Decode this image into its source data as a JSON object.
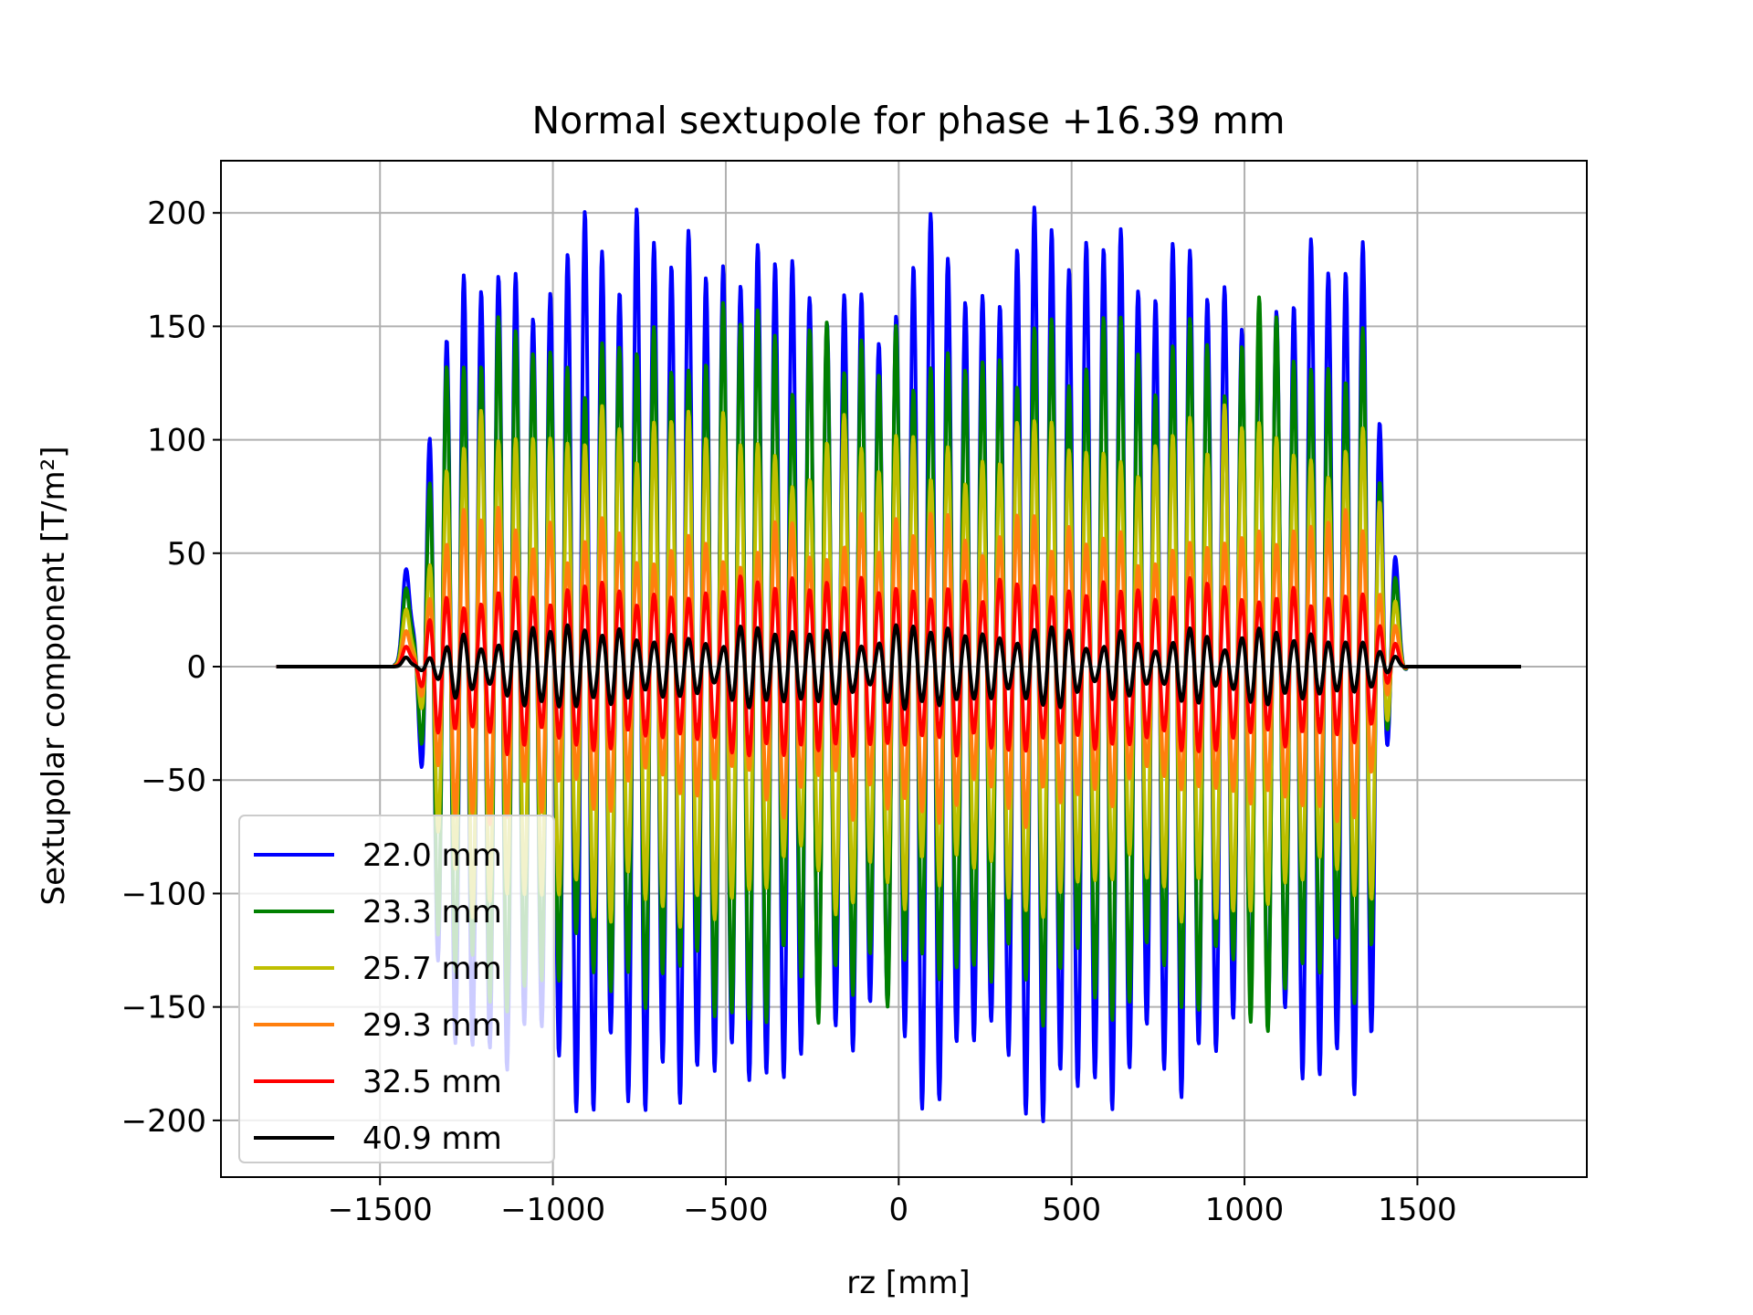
{
  "chart_data": {
    "type": "line",
    "title": "Normal sextupole for phase +16.39 mm",
    "xlabel": "rz [mm]",
    "ylabel": "Sextupolar component [T/m²]",
    "xlim": [
      -1960,
      1990
    ],
    "ylim": [
      -225,
      223
    ],
    "x_ticks": [
      -1500,
      -1000,
      -500,
      0,
      500,
      1000,
      1500
    ],
    "x_tick_labels": [
      "−1500",
      "−1000",
      "−500",
      "0",
      "500",
      "1000",
      "1500"
    ],
    "y_ticks": [
      200,
      150,
      100,
      50,
      0,
      -50,
      -100,
      -150,
      -200
    ],
    "y_tick_labels": [
      "200",
      "150",
      "100",
      "50",
      "0",
      "−50",
      "−100",
      "−150",
      "−200"
    ],
    "grid": true,
    "legend_position": "lower-left",
    "x_range": [
      -1800,
      1800
    ],
    "period_mm": 50,
    "undulator_start_mm": -1420,
    "undulator_end_mm": 1440,
    "series": [
      {
        "name": "22.0 mm",
        "color": "#0000ff",
        "amplitude_range": [
          140,
          205
        ]
      },
      {
        "name": "23.3 mm",
        "color": "#008000",
        "amplitude_range": [
          110,
          165
        ]
      },
      {
        "name": "25.7 mm",
        "color": "#bfbf00",
        "amplitude_range": [
          75,
          120
        ]
      },
      {
        "name": "29.3 mm",
        "color": "#ff7f0e",
        "amplitude_range": [
          42,
          75
        ]
      },
      {
        "name": "32.5 mm",
        "color": "#ff0000",
        "amplitude_range": [
          25,
          42
        ]
      },
      {
        "name": "40.9 mm",
        "color": "#000000",
        "amplitude_range": [
          5,
          19
        ]
      }
    ]
  }
}
